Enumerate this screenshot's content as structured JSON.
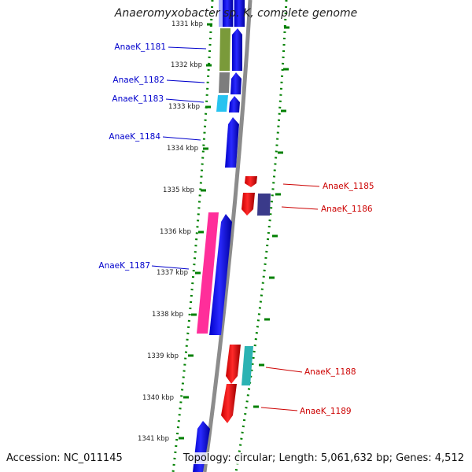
{
  "title": "Anaeromyxobacter sp. K, complete genome",
  "accession": "Accession: NC_011145",
  "topology": "Topology: circular; Length: 5,061,632 bp; Genes: 4,512",
  "ticks": [
    {
      "label": "1331 kbp"
    },
    {
      "label": "1332 kbp"
    },
    {
      "label": "1333 kbp"
    },
    {
      "label": "1334 kbp"
    },
    {
      "label": "1335 kbp"
    },
    {
      "label": "1336 kbp"
    },
    {
      "label": "1337 kbp"
    },
    {
      "label": "1338 kbp"
    },
    {
      "label": "1339 kbp"
    },
    {
      "label": "1340 kbp"
    },
    {
      "label": "1341 kbp"
    }
  ],
  "genes": [
    {
      "label": "AnaeK_1181",
      "strand": "forward",
      "color": "#0000ff",
      "label_color": "#0000cc"
    },
    {
      "label": "AnaeK_1182",
      "strand": "forward",
      "color": "#0000ff",
      "label_color": "#0000cc"
    },
    {
      "label": "AnaeK_1183",
      "strand": "forward",
      "color": "#0000ff",
      "label_color": "#0000cc"
    },
    {
      "label": "AnaeK_1184",
      "strand": "forward",
      "color": "#0000ff",
      "label_color": "#0000cc"
    },
    {
      "label": "AnaeK_1185",
      "strand": "reverse",
      "color": "#ff0000",
      "label_color": "#cc0000"
    },
    {
      "label": "AnaeK_1186",
      "strand": "reverse",
      "color": "#ff0000",
      "label_color": "#cc0000"
    },
    {
      "label": "AnaeK_1187",
      "strand": "forward",
      "color": "#0000ff",
      "label_color": "#0000cc"
    },
    {
      "label": "AnaeK_1188",
      "strand": "reverse",
      "color": "#ff0000",
      "label_color": "#cc0000"
    },
    {
      "label": "AnaeK_1189",
      "strand": "reverse",
      "color": "#ff0000",
      "label_color": "#cc0000"
    }
  ],
  "colors": {
    "backbone": "#8c8c8c",
    "dotted_ring": "#008000",
    "cog_olive": "#7a9a3a",
    "cog_grey": "#7d7d7d",
    "cog_cyan": "#27c3f0",
    "cog_pink": "#ff2e9a",
    "cog_navy": "#3a3a8a",
    "cog_teal": "#2bb3b3"
  }
}
